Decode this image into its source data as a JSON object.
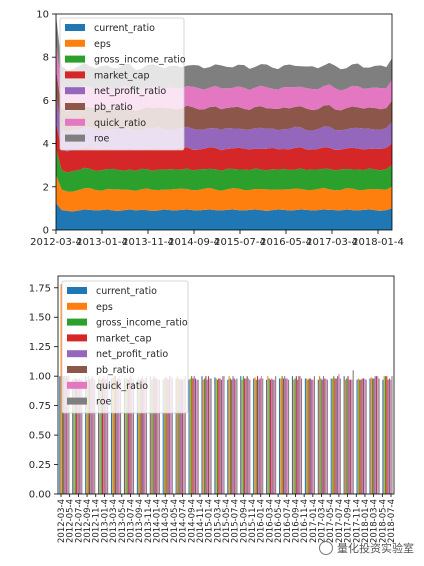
{
  "colors": {
    "current_ratio": "#1f77b4",
    "eps": "#ff7f0e",
    "gross_income_ratio": "#2ca02c",
    "market_cap": "#d62728",
    "net_profit_ratio": "#9467bd",
    "pb_ratio": "#8c564b",
    "quick_ratio": "#e377c2",
    "roe": "#7f7f7f"
  },
  "watermark": "量化投资实验室",
  "chart_data": [
    {
      "type": "area",
      "stacked": true,
      "legend_position": "upper-left",
      "ylim": [
        0,
        10
      ],
      "yticks": [
        0,
        2,
        4,
        6,
        8,
        10
      ],
      "x_tick_labels": [
        "2012-03-4",
        "2013-01-4",
        "2013-11-4",
        "2014-09-4",
        "2015-07-4",
        "2016-05-4",
        "2017-03-4",
        "2018-01-4"
      ],
      "series": [
        {
          "name": "current_ratio",
          "values": [
            1.25,
            0.92,
            0.88,
            0.86,
            0.9,
            0.95,
            0.93,
            0.9,
            0.92,
            0.95,
            0.9,
            0.88,
            0.92,
            0.95,
            0.9,
            0.93,
            0.92,
            0.88,
            0.9,
            0.95,
            0.92,
            0.9,
            0.93,
            0.95,
            0.92,
            0.9,
            0.93,
            0.95,
            0.92,
            0.9,
            0.93,
            0.95,
            0.92,
            0.9,
            0.93,
            0.95,
            0.92,
            0.88,
            0.92,
            0.95,
            0.93,
            0.9,
            0.92,
            0.95,
            0.93,
            0.9,
            0.92,
            0.95,
            0.93,
            0.92,
            0.9,
            0.95,
            0.92,
            0.9,
            0.93,
            0.95,
            0.92,
            0.88,
            0.92,
            1.0
          ]
        },
        {
          "name": "eps",
          "values": [
            1.3,
            0.95,
            0.9,
            0.92,
            0.95,
            0.98,
            1.0,
            0.95,
            0.9,
            0.95,
            0.98,
            1.0,
            0.95,
            0.9,
            0.92,
            0.95,
            1.0,
            0.98,
            0.95,
            0.92,
            0.95,
            1.0,
            0.98,
            0.95,
            0.92,
            0.95,
            0.98,
            1.0,
            0.95,
            0.92,
            0.95,
            0.98,
            1.0,
            0.95,
            0.92,
            0.95,
            0.98,
            1.0,
            0.95,
            0.92,
            0.95,
            0.98,
            1.0,
            0.95,
            0.92,
            0.95,
            0.98,
            1.0,
            0.95,
            0.92,
            0.95,
            0.98,
            1.0,
            0.95,
            0.92,
            0.95,
            0.98,
            1.0,
            0.95,
            1.0
          ]
        },
        {
          "name": "gross_income_ratio",
          "values": [
            1.2,
            0.9,
            0.88,
            0.95,
            0.92,
            0.95,
            0.9,
            0.88,
            0.95,
            0.92,
            0.95,
            0.9,
            0.88,
            0.95,
            0.92,
            0.95,
            0.9,
            0.88,
            0.95,
            0.92,
            0.95,
            0.9,
            0.88,
            0.95,
            0.92,
            0.95,
            0.9,
            0.88,
            0.95,
            0.92,
            0.95,
            0.9,
            0.88,
            0.95,
            0.92,
            0.95,
            0.9,
            0.88,
            0.95,
            0.92,
            0.95,
            0.9,
            0.88,
            0.95,
            0.92,
            0.95,
            0.9,
            0.88,
            0.95,
            0.92,
            0.95,
            0.9,
            0.88,
            0.95,
            0.92,
            0.95,
            0.9,
            0.88,
            0.95,
            1.0
          ]
        },
        {
          "name": "market_cap",
          "values": [
            1.25,
            0.95,
            0.98,
            1.0,
            0.95,
            0.92,
            0.95,
            1.0,
            0.98,
            0.95,
            0.92,
            0.95,
            1.0,
            0.98,
            0.95,
            0.92,
            0.95,
            1.0,
            0.98,
            0.95,
            0.92,
            0.95,
            1.0,
            0.98,
            0.95,
            0.92,
            0.95,
            1.0,
            0.98,
            0.95,
            0.92,
            0.95,
            1.0,
            0.98,
            0.95,
            0.92,
            0.95,
            1.0,
            0.98,
            0.95,
            0.92,
            0.95,
            1.0,
            0.98,
            0.95,
            0.92,
            0.95,
            1.0,
            0.98,
            0.95,
            0.92,
            0.95,
            1.0,
            0.98,
            0.95,
            0.92,
            0.95,
            1.0,
            0.98,
            1.0
          ]
        },
        {
          "name": "net_profit_ratio",
          "values": [
            1.2,
            0.92,
            0.9,
            0.88,
            0.92,
            0.95,
            0.98,
            0.92,
            0.9,
            0.88,
            0.92,
            0.95,
            0.98,
            0.92,
            0.9,
            0.88,
            0.92,
            0.95,
            0.98,
            0.92,
            0.9,
            0.88,
            0.92,
            0.95,
            0.98,
            0.92,
            0.9,
            0.88,
            0.92,
            0.95,
            0.98,
            0.92,
            0.9,
            0.88,
            0.92,
            0.95,
            0.98,
            0.92,
            0.9,
            0.88,
            0.92,
            0.95,
            0.98,
            0.92,
            0.9,
            0.88,
            0.92,
            0.95,
            0.98,
            0.92,
            0.9,
            0.88,
            0.92,
            0.95,
            0.98,
            0.92,
            0.9,
            0.88,
            0.92,
            1.0
          ]
        },
        {
          "name": "pb_ratio",
          "values": [
            1.25,
            1.0,
            0.95,
            0.98,
            1.0,
            0.95,
            0.92,
            0.98,
            1.0,
            0.95,
            0.92,
            0.98,
            1.0,
            0.95,
            0.92,
            0.98,
            1.0,
            0.95,
            0.92,
            0.98,
            1.0,
            0.95,
            0.92,
            0.98,
            1.0,
            0.95,
            0.92,
            0.98,
            1.0,
            0.95,
            0.92,
            0.98,
            1.0,
            0.95,
            0.92,
            0.98,
            1.0,
            0.95,
            0.92,
            0.98,
            1.0,
            0.95,
            0.92,
            0.98,
            1.0,
            0.95,
            0.92,
            0.98,
            1.0,
            0.95,
            0.92,
            0.98,
            1.0,
            0.95,
            0.92,
            0.98,
            1.0,
            0.95,
            0.92,
            1.0
          ]
        },
        {
          "name": "quick_ratio",
          "values": [
            1.2,
            0.95,
            0.92,
            0.9,
            0.95,
            0.98,
            0.92,
            0.9,
            0.95,
            0.98,
            0.92,
            0.9,
            0.95,
            0.98,
            0.92,
            0.9,
            0.95,
            0.98,
            0.92,
            0.9,
            0.95,
            0.98,
            0.92,
            0.9,
            0.95,
            0.98,
            0.92,
            0.9,
            0.95,
            0.98,
            0.92,
            0.9,
            0.95,
            0.98,
            0.92,
            0.9,
            0.95,
            0.98,
            0.92,
            0.9,
            0.95,
            0.98,
            0.92,
            0.9,
            0.95,
            0.98,
            0.92,
            0.9,
            0.95,
            0.98,
            0.92,
            0.9,
            0.95,
            0.98,
            0.92,
            0.9,
            0.95,
            0.98,
            0.92,
            0.95
          ]
        },
        {
          "name": "roe",
          "values": [
            1.3,
            1.0,
            0.98,
            0.95,
            1.0,
            1.05,
            0.98,
            0.95,
            1.0,
            1.05,
            0.98,
            0.95,
            1.0,
            1.05,
            0.98,
            0.95,
            1.0,
            1.05,
            0.98,
            0.95,
            1.0,
            1.05,
            0.98,
            0.95,
            1.0,
            1.05,
            0.98,
            0.95,
            1.0,
            1.05,
            0.98,
            0.95,
            1.0,
            1.05,
            0.98,
            0.95,
            1.0,
            1.05,
            0.98,
            0.95,
            1.0,
            1.05,
            0.98,
            0.95,
            1.0,
            1.05,
            0.98,
            0.95,
            1.0,
            1.05,
            0.98,
            0.95,
            1.0,
            1.05,
            0.98,
            0.95,
            1.0,
            1.05,
            0.98,
            1.0
          ]
        }
      ]
    },
    {
      "type": "bar",
      "legend_position": "upper-left",
      "ylim": [
        0,
        1.85
      ],
      "yticks": [
        0.0,
        0.25,
        0.5,
        0.75,
        1.0,
        1.25,
        1.5,
        1.75
      ],
      "ytick_labels": [
        "0.00",
        "0.25",
        "0.50",
        "0.75",
        "1.00",
        "1.25",
        "1.50",
        "1.75"
      ],
      "categories": [
        "2012-03-4",
        "2012-06-4",
        "2012-09-4",
        "2012-12-4",
        "2013-03-4",
        "2013-06-4",
        "2013-09-4",
        "2013-12-4",
        "2014-03-4",
        "2014-06-4",
        "2014-09-4",
        "2014-12-4",
        "2015-03-4",
        "2015-06-4",
        "2015-09-4",
        "2015-12-4",
        "2016-03-4",
        "2016-06-4",
        "2016-09-4",
        "2016-12-4",
        "2017-03-4",
        "2017-06-4",
        "2017-09-4",
        "2017-12-4",
        "2018-03-4",
        "2018-06-4"
      ],
      "x_tick_labels": [
        "2012-03-4",
        "2012-05-4",
        "2012-07-4",
        "2012-09-4",
        "2012-11-4",
        "2013-01-4",
        "2013-03-4",
        "2013-05-4",
        "2013-07-4",
        "2013-09-4",
        "2013-11-4",
        "2014-01-4",
        "2014-03-4",
        "2014-05-4",
        "2014-07-4",
        "2014-09-4",
        "2014-11-4",
        "2015-01-4",
        "2015-03-4",
        "2015-05-4",
        "2015-07-4",
        "2015-09-4",
        "2015-11-4",
        "2016-01-4",
        "2016-03-4",
        "2016-05-4",
        "2016-07-4",
        "2016-09-4",
        "2016-11-4",
        "2017-01-4",
        "2017-03-4",
        "2017-05-4",
        "2017-07-4",
        "2017-09-4",
        "2017-11-4",
        "2018-01-4",
        "2018-03-4",
        "2018-05-4",
        "2018-07-4"
      ],
      "series": [
        {
          "name": "current_ratio",
          "values": [
            1.0,
            0.97,
            1.0,
            0.98,
            0.98,
            0.98,
            0.97,
            1.0,
            0.97,
            0.98,
            0.97,
            1.0,
            0.99,
            0.97,
            1.0,
            0.98,
            0.97,
            0.98,
            1.0,
            0.98,
            0.97,
            0.98,
            1.0,
            0.97,
            0.98,
            0.97
          ]
        },
        {
          "name": "eps",
          "values": [
            1.78,
            0.98,
            0.97,
            1.0,
            0.98,
            0.98,
            0.99,
            0.97,
            0.98,
            1.0,
            0.98,
            0.97,
            0.98,
            1.0,
            0.97,
            0.99,
            1.0,
            0.98,
            0.97,
            0.98,
            1.0,
            0.98,
            0.97,
            0.98,
            0.99,
            1.0
          ]
        },
        {
          "name": "gross_income_ratio",
          "values": [
            1.0,
            0.98,
            1.0,
            0.97,
            1.0,
            0.98,
            0.97,
            0.98,
            0.99,
            0.98,
            1.0,
            0.98,
            0.97,
            0.98,
            1.0,
            0.97,
            0.98,
            1.0,
            0.98,
            0.97,
            0.98,
            1.0,
            0.98,
            0.97,
            0.98,
            1.0
          ]
        },
        {
          "name": "market_cap",
          "values": [
            1.0,
            0.98,
            0.97,
            0.98,
            1.0,
            0.97,
            0.98,
            1.0,
            0.98,
            0.97,
            0.98,
            1.0,
            0.98,
            0.97,
            0.98,
            1.0,
            0.97,
            0.98,
            1.0,
            0.98,
            0.97,
            0.98,
            1.0,
            0.97,
            0.98,
            1.0
          ]
        },
        {
          "name": "net_profit_ratio",
          "values": [
            1.0,
            0.97,
            0.98,
            1.0,
            0.97,
            0.98,
            1.0,
            0.98,
            0.97,
            0.98,
            1.0,
            0.97,
            0.98,
            1.0,
            0.98,
            0.97,
            0.98,
            1.0,
            0.97,
            0.98,
            1.0,
            0.98,
            0.97,
            0.98,
            1.0,
            0.97
          ]
        },
        {
          "name": "pb_ratio",
          "values": [
            1.0,
            0.98,
            1.0,
            0.97,
            0.98,
            1.0,
            0.97,
            0.98,
            1.0,
            0.97,
            0.98,
            1.0,
            0.97,
            0.98,
            1.0,
            0.98,
            0.97,
            0.98,
            1.0,
            0.97,
            0.98,
            1.0,
            0.97,
            0.98,
            1.0,
            0.98
          ]
        },
        {
          "name": "quick_ratio",
          "values": [
            1.0,
            0.97,
            0.98,
            0.98,
            1.0,
            0.97,
            0.98,
            0.97,
            1.0,
            0.98,
            0.97,
            0.98,
            1.0,
            0.97,
            0.98,
            1.0,
            0.97,
            0.98,
            1.0,
            0.97,
            0.98,
            1.02,
            0.97,
            0.98,
            1.0,
            0.97
          ]
        },
        {
          "name": "roe",
          "values": [
            1.0,
            0.98,
            0.97,
            1.0,
            0.97,
            0.98,
            1.0,
            0.97,
            0.98,
            1.0,
            0.97,
            0.98,
            1.0,
            0.98,
            0.97,
            0.98,
            1.0,
            0.97,
            0.98,
            1.0,
            0.97,
            0.98,
            1.05,
            0.97,
            0.98,
            1.0
          ]
        }
      ]
    }
  ]
}
